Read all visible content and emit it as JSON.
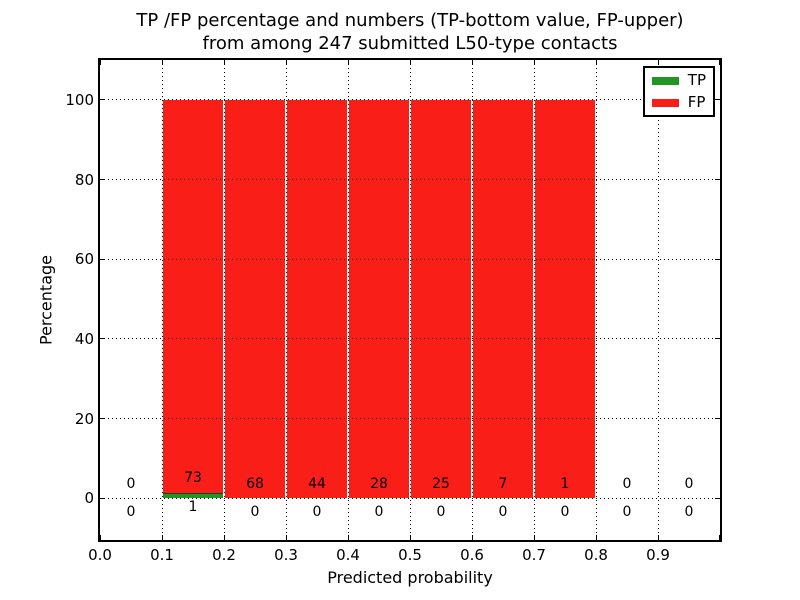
{
  "title": {
    "line1": "TP /FP percentage and numbers (TP-bottom value, FP-upper)",
    "line2": "from among 247 submitted L50-type contacts"
  },
  "axes": {
    "xlabel": "Predicted probability",
    "ylabel": "Percentage",
    "x_tick_labels": [
      "0.0",
      "0.1",
      "0.2",
      "0.3",
      "0.4",
      "0.5",
      "0.6",
      "0.7",
      "0.8",
      "0.9"
    ],
    "y_tick_labels": [
      "0",
      "20",
      "40",
      "60",
      "80",
      "100"
    ],
    "y_tick_values": [
      0,
      20,
      40,
      60,
      80,
      100
    ]
  },
  "legend": {
    "entries": [
      {
        "label": "TP",
        "color": "#229622"
      },
      {
        "label": "FP",
        "color": "#fa1e19"
      }
    ]
  },
  "chart_data": {
    "type": "bar",
    "stacked": true,
    "title": "TP /FP percentage and numbers (TP-bottom value, FP-upper) from among 247 submitted L50-type contacts",
    "xlabel": "Predicted probability",
    "ylabel": "Percentage",
    "total_contacts": 247,
    "bin_width": 0.1,
    "bin_starts": [
      0.0,
      0.1,
      0.2,
      0.3,
      0.4,
      0.5,
      0.6,
      0.7,
      0.8,
      0.9
    ],
    "series": [
      {
        "name": "TP",
        "color": "#229622",
        "counts": [
          0,
          1,
          0,
          0,
          0,
          0,
          0,
          0,
          0,
          0
        ]
      },
      {
        "name": "FP",
        "color": "#fa1e19",
        "counts": [
          0,
          73,
          68,
          44,
          28,
          25,
          7,
          1,
          0,
          0
        ]
      }
    ],
    "bar_unit": "percent of contacts within each bin (stacked to 100%)",
    "xlim": [
      0.0,
      1.0
    ],
    "ylim": [
      -10.5,
      110
    ],
    "grid": "dotted",
    "legend_position": "upper right"
  }
}
